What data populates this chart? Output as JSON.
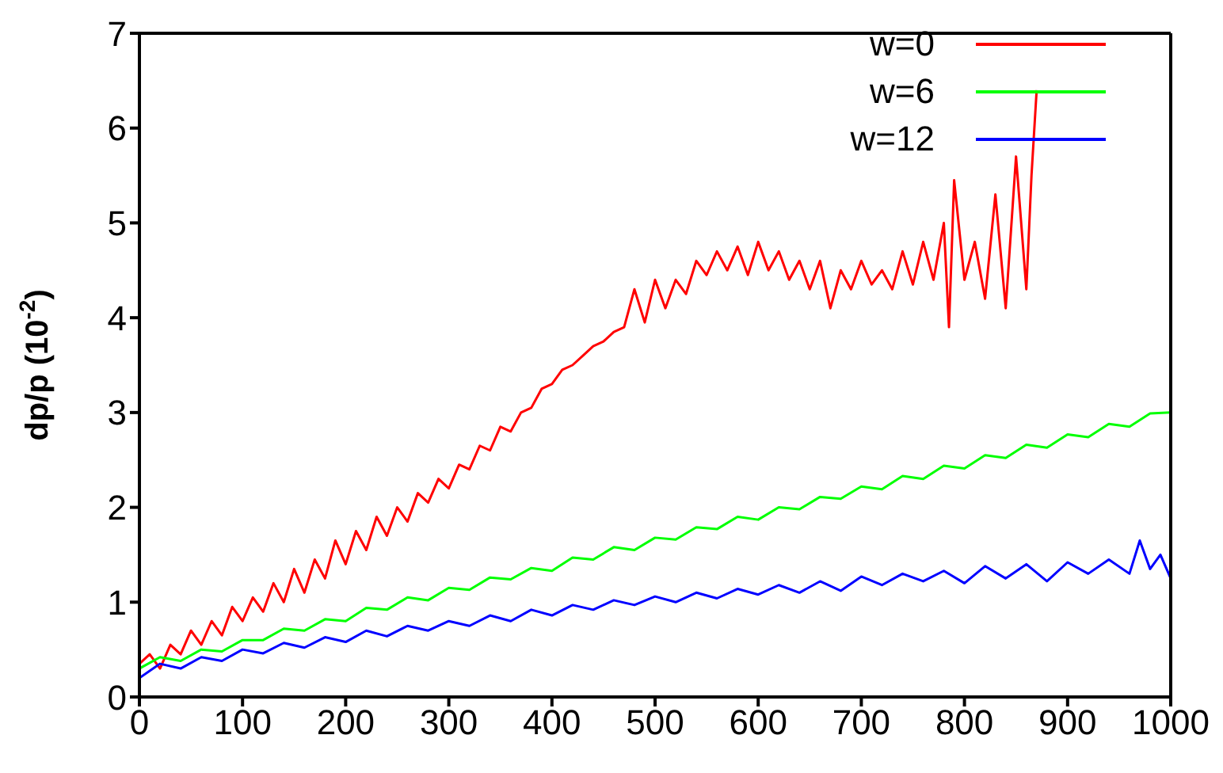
{
  "chart_data": {
    "type": "line",
    "ylabel": "dp/p (10$^{-2}$)",
    "xlim": [
      0,
      1000
    ],
    "xticks": [
      0,
      100,
      200,
      300,
      400,
      500,
      600,
      700,
      800,
      900,
      1000
    ],
    "ylim": [
      0,
      7
    ],
    "yticks": [
      0,
      1,
      2,
      3,
      4,
      5,
      6,
      7
    ],
    "legend": "top right",
    "marker": "none",
    "line_style": "solid",
    "series": [
      {
        "name": "w=0",
        "color": "#ff0000",
        "x": [
          0,
          10,
          20,
          30,
          40,
          50,
          60,
          70,
          80,
          90,
          100,
          110,
          120,
          130,
          140,
          150,
          160,
          170,
          180,
          190,
          200,
          210,
          220,
          230,
          240,
          250,
          260,
          270,
          280,
          290,
          300,
          310,
          320,
          330,
          340,
          350,
          360,
          370,
          380,
          390,
          400,
          410,
          420,
          430,
          440,
          450,
          460,
          470,
          480,
          490,
          500,
          510,
          520,
          530,
          540,
          550,
          560,
          570,
          580,
          590,
          600,
          610,
          620,
          630,
          640,
          650,
          660,
          670,
          680,
          690,
          700,
          710,
          720,
          730,
          740,
          750,
          760,
          770,
          780,
          785,
          790,
          800,
          810,
          820,
          830,
          840,
          850,
          860,
          865,
          870
        ],
        "values": [
          0.35,
          0.45,
          0.3,
          0.55,
          0.45,
          0.7,
          0.55,
          0.8,
          0.65,
          0.95,
          0.8,
          1.05,
          0.9,
          1.2,
          1.0,
          1.35,
          1.1,
          1.45,
          1.25,
          1.65,
          1.4,
          1.75,
          1.55,
          1.9,
          1.7,
          2.0,
          1.85,
          2.15,
          2.05,
          2.3,
          2.2,
          2.45,
          2.4,
          2.65,
          2.6,
          2.85,
          2.8,
          3.0,
          3.05,
          3.25,
          3.3,
          3.45,
          3.5,
          3.6,
          3.7,
          3.75,
          3.85,
          3.9,
          4.3,
          3.95,
          4.4,
          4.1,
          4.4,
          4.25,
          4.6,
          4.45,
          4.7,
          4.5,
          4.75,
          4.45,
          4.8,
          4.5,
          4.7,
          4.4,
          4.6,
          4.3,
          4.6,
          4.1,
          4.5,
          4.3,
          4.6,
          4.35,
          4.5,
          4.3,
          4.7,
          4.35,
          4.8,
          4.4,
          5.0,
          3.9,
          5.45,
          4.4,
          4.8,
          4.2,
          5.3,
          4.1,
          5.7,
          4.3,
          5.5,
          6.4
        ]
      },
      {
        "name": "w=6",
        "color": "#00ff00",
        "x": [
          0,
          20,
          40,
          60,
          80,
          100,
          120,
          140,
          160,
          180,
          200,
          220,
          240,
          260,
          280,
          300,
          320,
          340,
          360,
          380,
          400,
          420,
          440,
          460,
          480,
          500,
          520,
          540,
          560,
          580,
          600,
          620,
          640,
          660,
          680,
          700,
          720,
          740,
          760,
          780,
          800,
          820,
          840,
          860,
          880,
          900,
          920,
          940,
          960,
          980,
          1000
        ],
        "values": [
          0.3,
          0.42,
          0.38,
          0.5,
          0.48,
          0.6,
          0.6,
          0.72,
          0.7,
          0.82,
          0.8,
          0.94,
          0.92,
          1.05,
          1.02,
          1.15,
          1.13,
          1.26,
          1.24,
          1.36,
          1.33,
          1.47,
          1.45,
          1.58,
          1.55,
          1.68,
          1.66,
          1.79,
          1.77,
          1.9,
          1.87,
          2.0,
          1.98,
          2.11,
          2.09,
          2.22,
          2.19,
          2.33,
          2.3,
          2.44,
          2.41,
          2.55,
          2.52,
          2.66,
          2.63,
          2.77,
          2.74,
          2.88,
          2.85,
          2.99,
          3.0
        ]
      },
      {
        "name": "w=12",
        "color": "#0000ff",
        "x": [
          0,
          20,
          40,
          60,
          80,
          100,
          120,
          140,
          160,
          180,
          200,
          220,
          240,
          260,
          280,
          300,
          320,
          340,
          360,
          380,
          400,
          420,
          440,
          460,
          480,
          500,
          520,
          540,
          560,
          580,
          600,
          620,
          640,
          660,
          680,
          700,
          720,
          740,
          760,
          780,
          800,
          820,
          840,
          860,
          880,
          900,
          920,
          940,
          960,
          970,
          980,
          990,
          1000
        ],
        "values": [
          0.2,
          0.35,
          0.3,
          0.42,
          0.38,
          0.5,
          0.46,
          0.57,
          0.52,
          0.63,
          0.58,
          0.7,
          0.64,
          0.75,
          0.7,
          0.8,
          0.75,
          0.86,
          0.8,
          0.92,
          0.86,
          0.97,
          0.92,
          1.02,
          0.97,
          1.06,
          1.0,
          1.1,
          1.04,
          1.14,
          1.08,
          1.18,
          1.1,
          1.22,
          1.12,
          1.27,
          1.18,
          1.3,
          1.22,
          1.33,
          1.2,
          1.38,
          1.25,
          1.4,
          1.22,
          1.42,
          1.3,
          1.45,
          1.3,
          1.65,
          1.35,
          1.5,
          1.25
        ]
      }
    ]
  }
}
